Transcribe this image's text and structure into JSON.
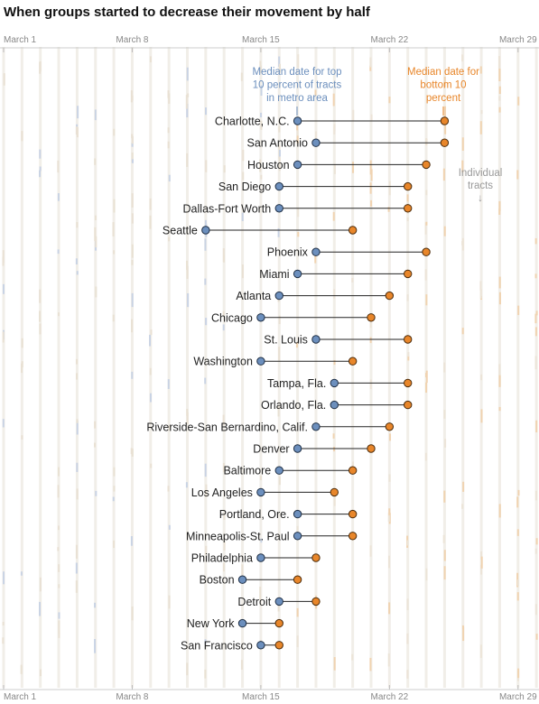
{
  "title": "When groups started to decrease their movement by half",
  "chart_data": {
    "type": "dumbbell",
    "title": "When groups started to decrease their movement by half",
    "x_axis": {
      "ticks": [
        "March 1",
        "March 8",
        "March 15",
        "March 22",
        "March 29"
      ],
      "tick_days": [
        1,
        8,
        15,
        22,
        29
      ],
      "range_days": [
        1,
        31
      ],
      "month": "March",
      "unit": "day of month"
    },
    "series": [
      {
        "name": "Median date for top 10 percent of tracts in metro area",
        "color": "#6c8fbd"
      },
      {
        "name": "Median date for bottom 10 percent",
        "color": "#e8862a"
      }
    ],
    "annotations": {
      "top_label": [
        "Median date for top",
        "10 percent of tracts",
        "in metro area"
      ],
      "bottom_label": [
        "Median date for",
        "bottom 10",
        "percent"
      ],
      "tracts_label": [
        "Individual",
        "tracts",
        "↓"
      ]
    },
    "cities": [
      {
        "name": "Charlotte, N.C.",
        "top": 17,
        "bottom": 25
      },
      {
        "name": "San Antonio",
        "top": 18,
        "bottom": 25
      },
      {
        "name": "Houston",
        "top": 17,
        "bottom": 24
      },
      {
        "name": "San Diego",
        "top": 16,
        "bottom": 23
      },
      {
        "name": "Dallas-Fort Worth",
        "top": 16,
        "bottom": 23
      },
      {
        "name": "Seattle",
        "top": 12,
        "bottom": 20
      },
      {
        "name": "Phoenix",
        "top": 18,
        "bottom": 24
      },
      {
        "name": "Miami",
        "top": 17,
        "bottom": 23
      },
      {
        "name": "Atlanta",
        "top": 16,
        "bottom": 22
      },
      {
        "name": "Chicago",
        "top": 15,
        "bottom": 21
      },
      {
        "name": "St. Louis",
        "top": 18,
        "bottom": 23
      },
      {
        "name": "Washington",
        "top": 15,
        "bottom": 20
      },
      {
        "name": "Tampa, Fla.",
        "top": 19,
        "bottom": 23
      },
      {
        "name": "Orlando, Fla.",
        "top": 19,
        "bottom": 23
      },
      {
        "name": "Riverside-San Bernardino, Calif.",
        "top": 18,
        "bottom": 22
      },
      {
        "name": "Denver",
        "top": 17,
        "bottom": 21
      },
      {
        "name": "Baltimore",
        "top": 16,
        "bottom": 20
      },
      {
        "name": "Los Angeles",
        "top": 15,
        "bottom": 19
      },
      {
        "name": "Portland, Ore.",
        "top": 17,
        "bottom": 20
      },
      {
        "name": "Minneapolis-St. Paul",
        "top": 17,
        "bottom": 20
      },
      {
        "name": "Philadelphia",
        "top": 15,
        "bottom": 18
      },
      {
        "name": "Boston",
        "top": 14,
        "bottom": 17
      },
      {
        "name": "Detroit",
        "top": 16,
        "bottom": 18
      },
      {
        "name": "New York",
        "top": 14,
        "bottom": 16
      },
      {
        "name": "San Francisco",
        "top": 15,
        "bottom": 16
      }
    ]
  }
}
